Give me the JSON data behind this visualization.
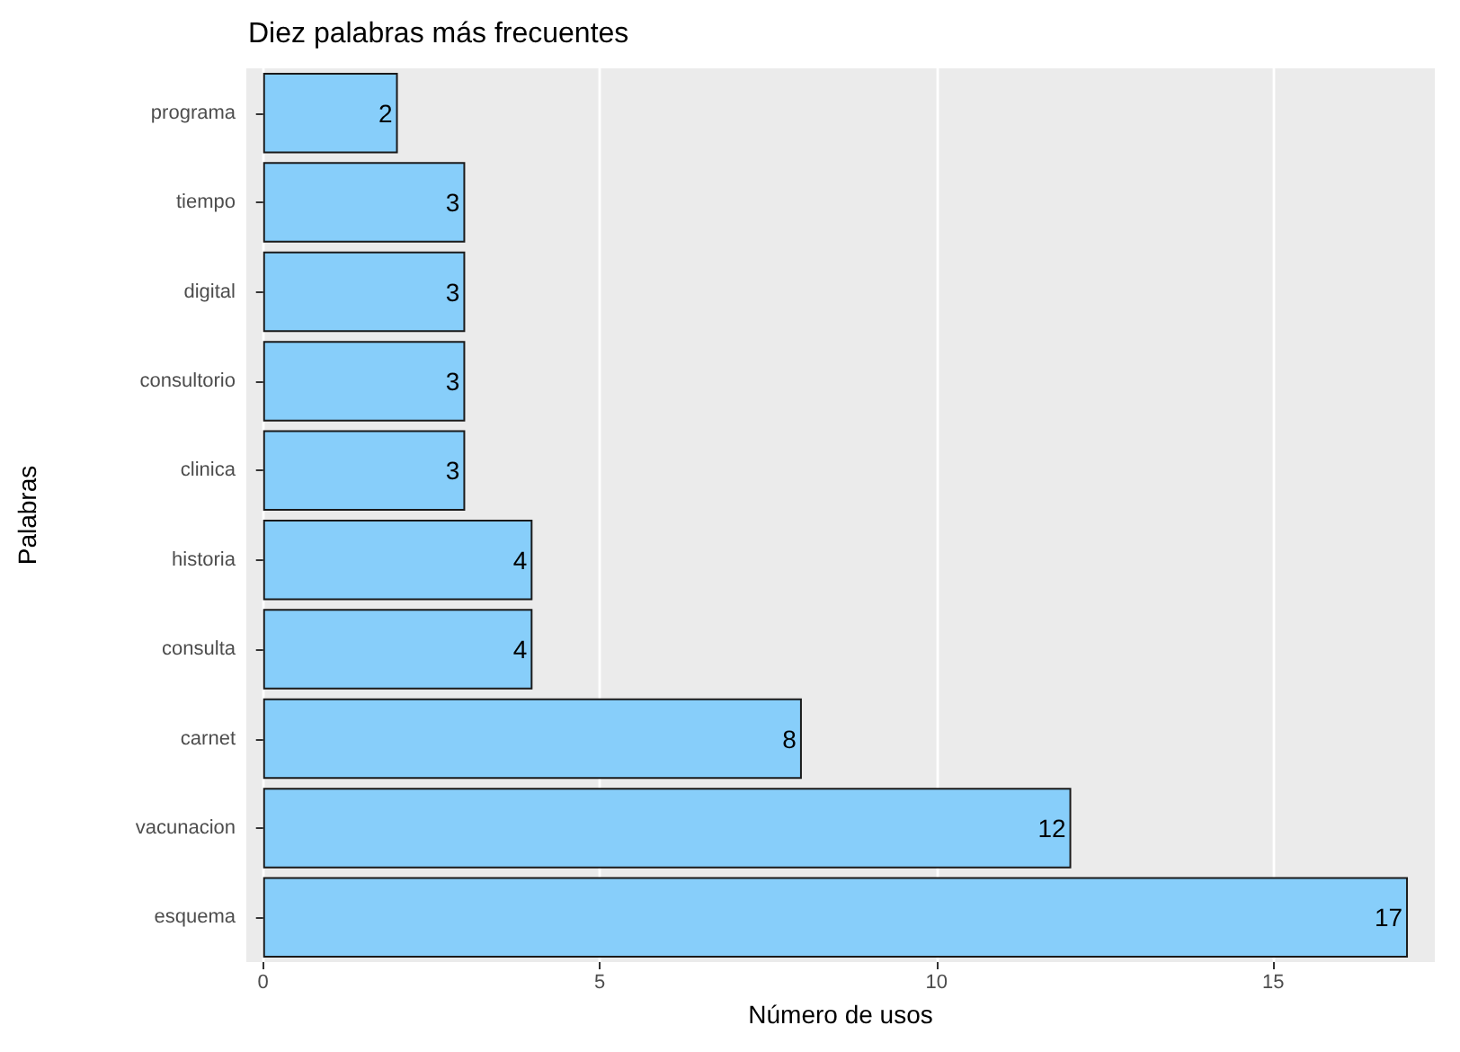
{
  "chart_data": {
    "type": "bar",
    "orientation": "horizontal",
    "title": "Diez palabras más frecuentes",
    "xlabel": "Número de usos",
    "ylabel": "Palabras",
    "categories": [
      "programa",
      "tiempo",
      "digital",
      "consultorio",
      "clinica",
      "historia",
      "consulta",
      "carnet",
      "vacunacion",
      "esquema"
    ],
    "values": [
      2,
      3,
      3,
      3,
      3,
      4,
      4,
      8,
      12,
      17
    ],
    "color": "#87cefa",
    "data_labels": true,
    "xlim": [
      -0.25,
      17.4
    ],
    "xticks": [
      0,
      5,
      10,
      15
    ],
    "grid": "x"
  }
}
